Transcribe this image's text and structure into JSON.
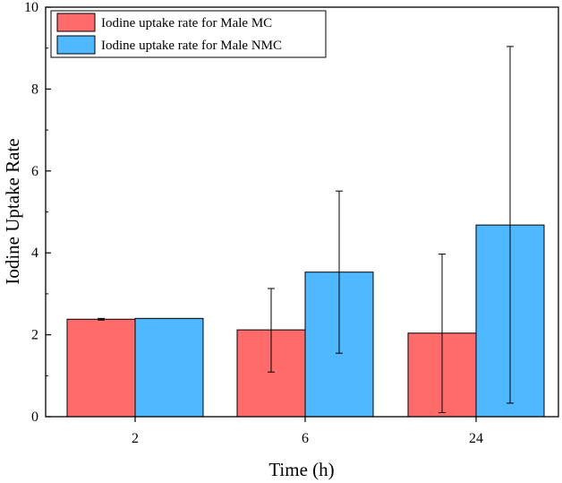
{
  "chart_data": {
    "type": "bar",
    "title": "",
    "xlabel": "Time (h)",
    "ylabel": "Iodine Uptake Rate",
    "ylim": [
      0,
      10
    ],
    "yticks": [
      0,
      2,
      4,
      6,
      8,
      10
    ],
    "grid": false,
    "legend_position": "top-left",
    "categories": [
      "2",
      "6",
      "24"
    ],
    "series": [
      {
        "name": "Iodine uptake rate for Male MC",
        "color": "#ff6b6b",
        "values": [
          2.38,
          2.12,
          2.04
        ],
        "err_low": [
          2.36,
          1.09,
          0.1
        ],
        "err_high": [
          2.4,
          3.13,
          3.97
        ]
      },
      {
        "name": "Iodine uptake rate for Male NMC",
        "color": "#4fb8ff",
        "values": [
          2.4,
          3.53,
          4.68
        ],
        "err_low": [
          2.4,
          1.55,
          0.33
        ],
        "err_high": [
          2.4,
          5.51,
          9.04
        ]
      }
    ]
  }
}
